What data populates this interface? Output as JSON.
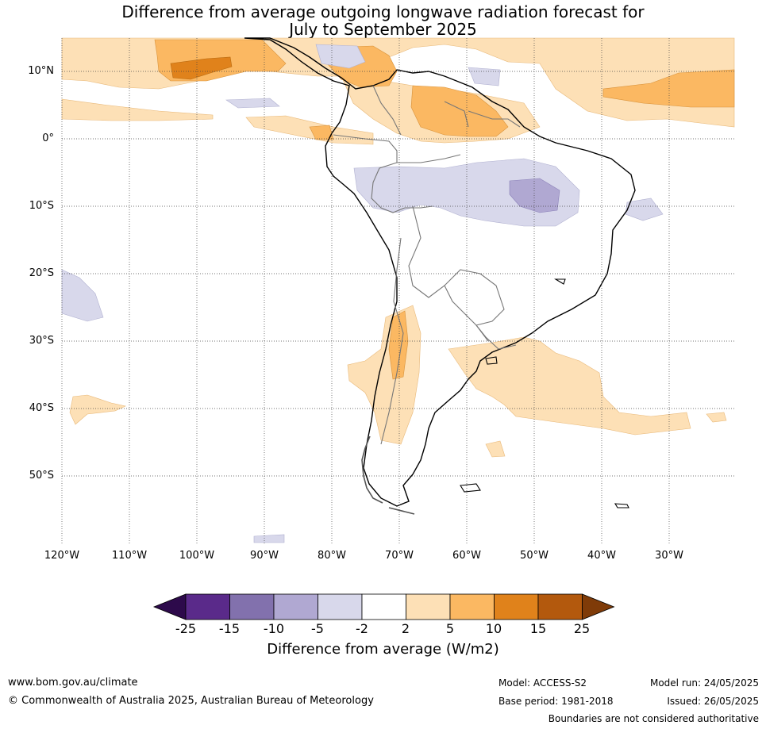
{
  "title_line1": "Difference from average outgoing longwave radiation forecast for",
  "title_line2": "July to September 2025",
  "lat_labels": [
    "10°N",
    "0°",
    "10°S",
    "20°S",
    "30°S",
    "40°S",
    "50°S"
  ],
  "lon_labels": [
    "120°W",
    "110°W",
    "100°W",
    "90°W",
    "80°W",
    "70°W",
    "60°W",
    "50°W",
    "40°W",
    "30°W"
  ],
  "colorbar": {
    "ticks": [
      "-25",
      "-15",
      "-10",
      "-5",
      "-2",
      "2",
      "5",
      "10",
      "15",
      "25"
    ],
    "colors": [
      "#2d0a4b",
      "#5a2a8a",
      "#8271ad",
      "#b0a8d2",
      "#d8d8eb",
      "#ffffff",
      "#fde0b6",
      "#fbb862",
      "#e0821b",
      "#b3590d",
      "#7f3b08"
    ],
    "title": "Difference from average (W/m2)"
  },
  "footer": {
    "url": "www.bom.gov.au/climate",
    "copyright": "© Commonwealth of Australia 2025, Australian Bureau of Meteorology",
    "model": "Model: ACCESS-S2",
    "base_period": "Base period: 1981-2018",
    "model_run": "Model run: 24/05/2025",
    "issued": "Issued: 26/05/2025",
    "disclaimer": "Boundaries are not considered authoritative"
  }
}
